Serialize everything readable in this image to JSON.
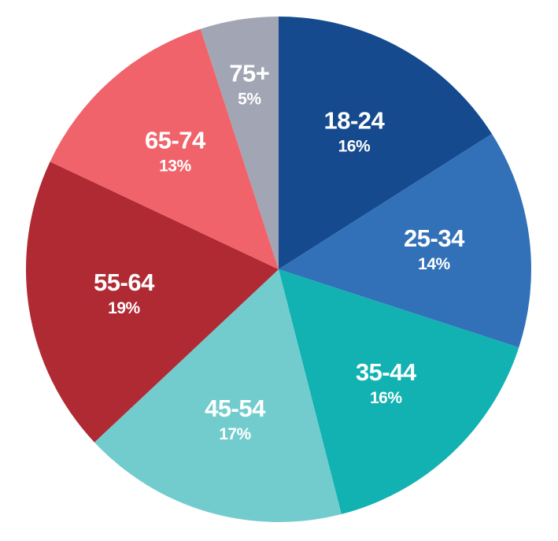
{
  "chart_data": {
    "type": "pie",
    "title": "",
    "categories": [
      "18-24",
      "25-34",
      "35-44",
      "45-54",
      "55-64",
      "65-74",
      "75+"
    ],
    "values": [
      16,
      14,
      16,
      17,
      19,
      13,
      5
    ],
    "percent_labels": [
      "16%",
      "14%",
      "16%",
      "17%",
      "19%",
      "13%",
      "5%"
    ],
    "colors": [
      "#164a8e",
      "#3271b8",
      "#12b1b2",
      "#72cccd",
      "#b02a33",
      "#f0636a",
      "#a2a6b4"
    ],
    "start_angle_deg": 0,
    "direction": "clockwise",
    "legend": "none"
  }
}
